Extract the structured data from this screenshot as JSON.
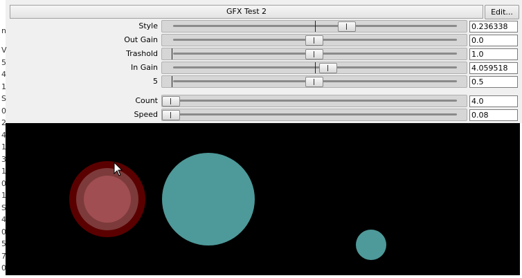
{
  "window": {
    "title": "GFX Test 2",
    "edit_button": "Edit..."
  },
  "parameters": [
    {
      "label": "Style",
      "value": "0.236338"
    },
    {
      "label": "Out Gain",
      "value": "0.0"
    },
    {
      "label": "Trashold",
      "value": "1.0"
    },
    {
      "label": "In Gain",
      "value": "4.059518"
    },
    {
      "label": "5",
      "value": "0.5"
    },
    {
      "label": "Count",
      "value": "4.0"
    },
    {
      "label": "Speed",
      "value": "0.08"
    }
  ],
  "background": {
    "top_fragment": "n",
    "fragments": [
      "V",
      "5",
      "4",
      "1",
      "S",
      "0",
      "2",
      "4",
      "1",
      "3",
      "1",
      "0",
      "1",
      "S",
      "4",
      "0",
      "5",
      "7",
      "0"
    ]
  }
}
